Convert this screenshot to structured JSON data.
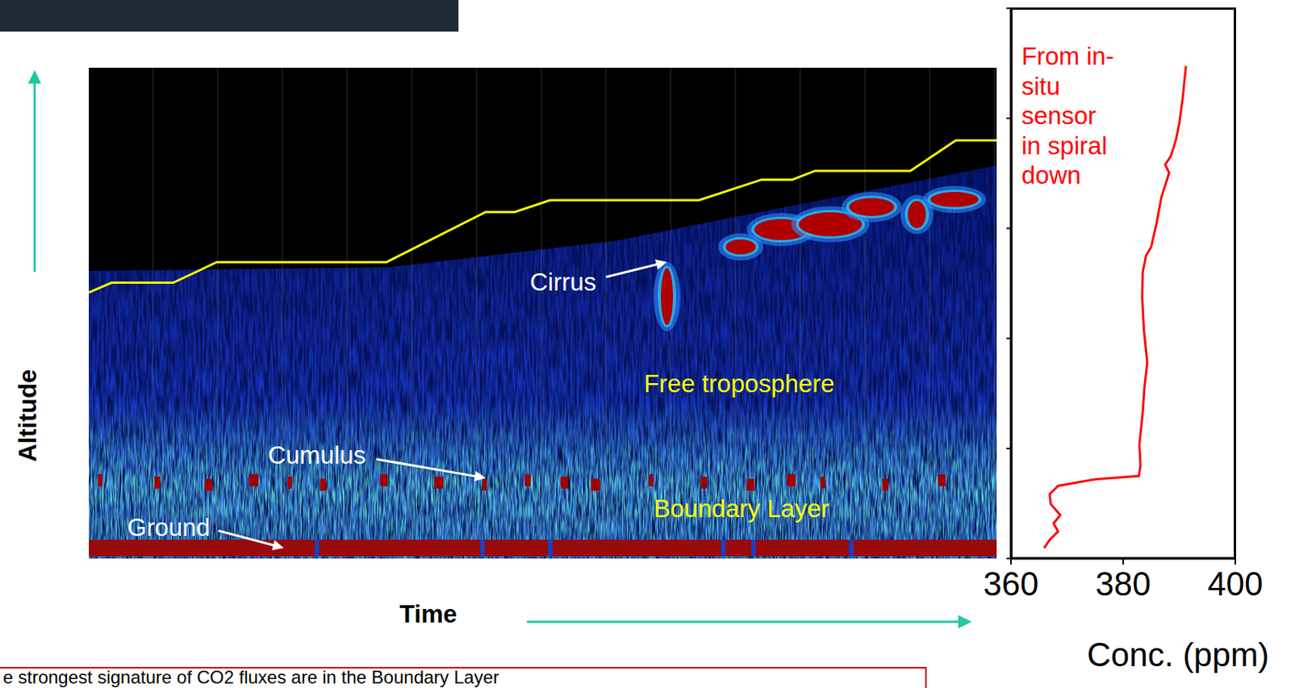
{
  "chart_data": [
    {
      "type": "line",
      "xlabel": "Time",
      "ylabel": "Altitude",
      "x": [
        0,
        2.5,
        9.3,
        14.1,
        32.8,
        43.7,
        46.9,
        50.8,
        67.2,
        74.1,
        77.5,
        80.0,
        90.5,
        95.5,
        100
      ],
      "values": [
        54.2,
        56.2,
        56.2,
        60.4,
        60.4,
        70.6,
        70.6,
        73.0,
        73.0,
        77.2,
        77.2,
        79.0,
        79.0,
        85.2,
        85.2
      ],
      "color": "#ffff00",
      "xlim": [
        0,
        100
      ],
      "ylim": [
        0,
        100
      ],
      "tick_labels": false,
      "annotations": [
        {
          "text": "Cirrus",
          "color": "#ffffff"
        },
        {
          "text": "Free troposphere",
          "color": "#ffff00"
        },
        {
          "text": "Cumulus",
          "color": "#ffffff"
        },
        {
          "text": "Boundary Layer",
          "color": "#ffff00"
        },
        {
          "text": "Ground",
          "color": "#ffffff"
        }
      ]
    },
    {
      "type": "line",
      "xlabel": "Conc. (ppm)",
      "annotation": "From in-situ sensor in spiral down",
      "x": [
        365.9,
        366.9,
        368.4,
        367.6,
        368.8,
        367.1,
        366.9,
        368.4,
        375.0,
        382.8,
        383.1,
        382.9,
        383.5,
        383.8,
        384.3,
        383.7,
        383.4,
        383.5,
        384.1,
        385.0,
        386.0,
        386.8,
        387.5,
        388.2,
        387.5,
        388.5,
        389.4,
        390.0,
        390.6,
        390.9,
        391.2
      ],
      "values": [
        1.9,
        3.4,
        4.9,
        6.4,
        7.9,
        9.9,
        11.7,
        13.2,
        14.4,
        15.0,
        16.9,
        20.7,
        26.6,
        31.1,
        35.6,
        41.6,
        47.6,
        52.1,
        55.1,
        56.6,
        61.1,
        65.6,
        67.8,
        70.1,
        71.6,
        73.1,
        76.0,
        79.0,
        83.5,
        86.5,
        89.5
      ],
      "color": "#ff0000",
      "xlim": [
        360,
        400
      ],
      "xticks": [
        360,
        380,
        400
      ],
      "ylim": [
        0,
        100
      ],
      "yticks": [
        0,
        20,
        40,
        60,
        80,
        100
      ],
      "tick_labels": "x"
    }
  ],
  "caption": "e strongest signature of CO2 fluxes are in the Boundary Layer"
}
